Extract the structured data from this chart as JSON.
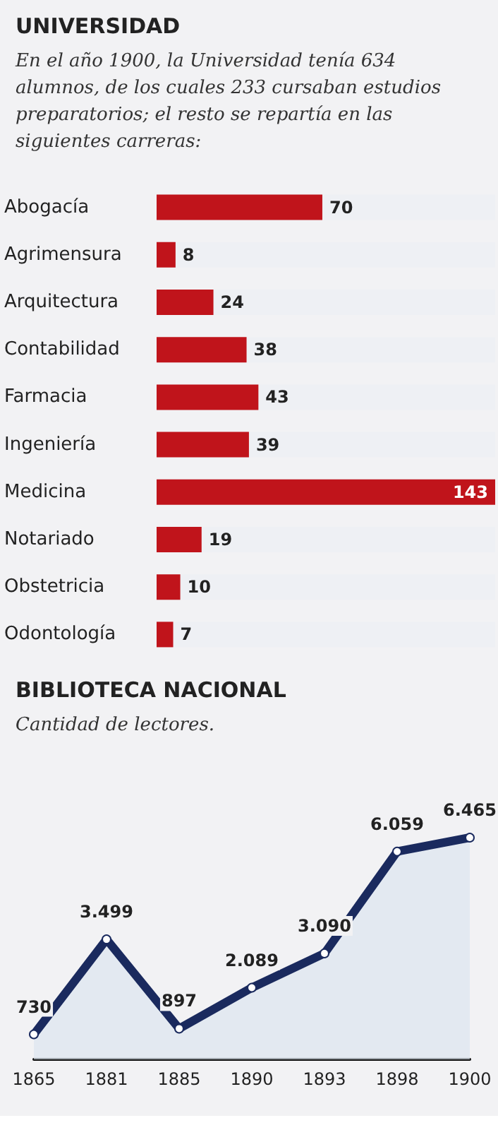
{
  "chart_data": [
    {
      "type": "bar",
      "orientation": "horizontal",
      "title": "UNIVERSIDAD",
      "subtitle": "En el año 1900, la Universidad tenía 634 alumnos, de los cuales 233 cursaban estudios preparatorios; el resto se repartía en las siguientes carreras:",
      "categories": [
        "Abogacía",
        "Agrimensura",
        "Arquitectura",
        "Contabilidad",
        "Farmacia",
        "Ingeniería",
        "Medicina",
        "Notariado",
        "Obstetricia",
        "Odontología"
      ],
      "values": [
        70,
        8,
        24,
        38,
        43,
        39,
        143,
        19,
        10,
        7
      ],
      "color": "#c0141b",
      "data_labels": true
    },
    {
      "type": "area",
      "title": "BIBLIOTECA NACIONAL",
      "subtitle": "Cantidad de lectores.",
      "categories": [
        "1865",
        "1881",
        "1885",
        "1890",
        "1893",
        "1898",
        "1900"
      ],
      "values": [
        730,
        3499,
        897,
        2089,
        3090,
        6059,
        6465
      ],
      "value_labels": [
        "730",
        "3.499",
        "897",
        "2.089",
        "3.090",
        "6.059",
        "6.465"
      ],
      "color": "#1a2a5e",
      "marker": "circle"
    }
  ]
}
